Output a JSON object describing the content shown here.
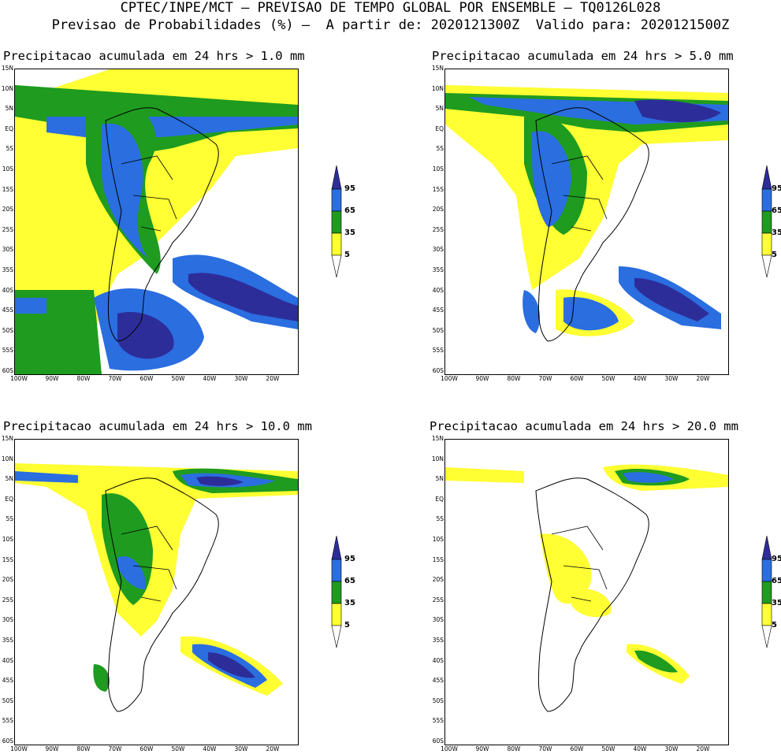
{
  "header": {
    "line1": "CPTEC/INPE/MCT – PREVISAO DE TEMPO GLOBAL POR ENSEMBLE – TQ0126L028",
    "line2": "Previsao de Probabilidades (%) –  A partir de: 2020121300Z  Valido para: 2020121500Z"
  },
  "colors": {
    "yellow": "#ffff33",
    "green": "#1f9b1f",
    "blue": "#2a6ee0",
    "navy": "#2d2d9a"
  },
  "legend": {
    "levels": [
      "95",
      "65",
      "35",
      "5"
    ]
  },
  "axes": {
    "lat_labels": [
      "15N",
      "10N",
      "5N",
      "EQ",
      "5S",
      "10S",
      "15S",
      "20S",
      "25S",
      "30S",
      "35S",
      "40S",
      "45S",
      "50S",
      "55S",
      "60S"
    ],
    "lon_labels": [
      "100W",
      "90W",
      "80W",
      "70W",
      "60W",
      "50W",
      "40W",
      "30W",
      "20W"
    ]
  },
  "panels": [
    {
      "title": "Precipitacao acumulada em 24 hrs > 1.0 mm"
    },
    {
      "title": "Precipitacao acumulada em 24 hrs > 5.0 mm"
    },
    {
      "title": "Precipitacao acumulada em 24 hrs > 10.0 mm"
    },
    {
      "title": "Precipitacao acumulada em 24 hrs > 20.0 mm"
    }
  ]
}
